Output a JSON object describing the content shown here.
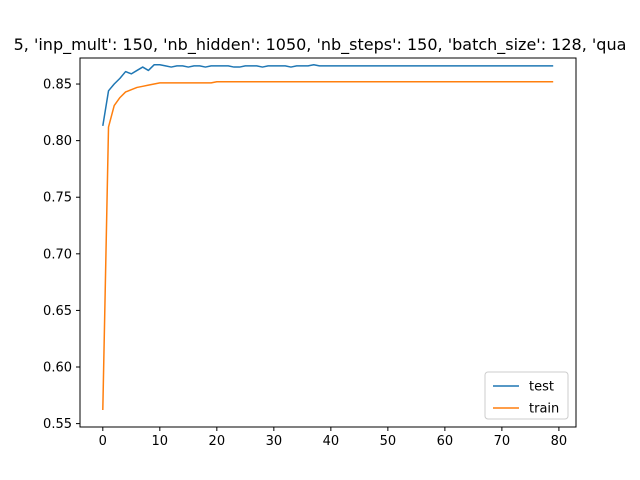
{
  "chart_data": {
    "type": "line",
    "title": "5, 'inp_mult': 150, 'nb_hidden': 1050, 'nb_steps': 150, 'batch_size': 128, 'qua",
    "xlabel": "",
    "ylabel": "",
    "xlim": [
      -4,
      83
    ],
    "ylim": [
      0.547,
      0.873
    ],
    "xticks": [
      0,
      10,
      20,
      30,
      40,
      50,
      60,
      70,
      80
    ],
    "yticks": [
      0.55,
      0.6,
      0.65,
      0.7,
      0.75,
      0.8,
      0.85
    ],
    "ytick_labels": [
      "0.55",
      "0.60",
      "0.65",
      "0.70",
      "0.75",
      "0.80",
      "0.85"
    ],
    "grid": false,
    "legend_position": "lower-right",
    "x": [
      0,
      1,
      2,
      3,
      4,
      5,
      6,
      7,
      8,
      9,
      10,
      11,
      12,
      13,
      14,
      15,
      16,
      17,
      18,
      19,
      20,
      21,
      22,
      23,
      24,
      25,
      26,
      27,
      28,
      29,
      30,
      31,
      32,
      33,
      34,
      35,
      36,
      37,
      38,
      39,
      40,
      41,
      42,
      43,
      44,
      45,
      46,
      47,
      48,
      49,
      50,
      51,
      52,
      53,
      54,
      55,
      56,
      57,
      58,
      59,
      60,
      61,
      62,
      63,
      64,
      65,
      66,
      67,
      68,
      69,
      70,
      71,
      72,
      73,
      74,
      75,
      76,
      77,
      78,
      79
    ],
    "series": [
      {
        "name": "test",
        "color": "#1f77b4",
        "values": [
          0.813,
          0.844,
          0.85,
          0.855,
          0.861,
          0.859,
          0.862,
          0.865,
          0.862,
          0.867,
          0.867,
          0.866,
          0.865,
          0.866,
          0.866,
          0.865,
          0.866,
          0.866,
          0.865,
          0.866,
          0.866,
          0.866,
          0.866,
          0.865,
          0.865,
          0.866,
          0.866,
          0.866,
          0.865,
          0.866,
          0.866,
          0.866,
          0.866,
          0.865,
          0.866,
          0.866,
          0.866,
          0.867,
          0.866,
          0.866,
          0.866,
          0.866,
          0.866,
          0.866,
          0.866,
          0.866,
          0.866,
          0.866,
          0.866,
          0.866,
          0.866,
          0.866,
          0.866,
          0.866,
          0.866,
          0.866,
          0.866,
          0.866,
          0.866,
          0.866,
          0.866,
          0.866,
          0.866,
          0.866,
          0.866,
          0.866,
          0.866,
          0.866,
          0.866,
          0.866,
          0.866,
          0.866,
          0.866,
          0.866,
          0.866,
          0.866,
          0.866,
          0.866,
          0.866,
          0.866
        ]
      },
      {
        "name": "train",
        "color": "#ff7f0e",
        "values": [
          0.562,
          0.812,
          0.831,
          0.838,
          0.843,
          0.845,
          0.847,
          0.848,
          0.849,
          0.85,
          0.851,
          0.851,
          0.851,
          0.851,
          0.851,
          0.851,
          0.851,
          0.851,
          0.851,
          0.851,
          0.852,
          0.852,
          0.852,
          0.852,
          0.852,
          0.852,
          0.852,
          0.852,
          0.852,
          0.852,
          0.852,
          0.852,
          0.852,
          0.852,
          0.852,
          0.852,
          0.852,
          0.852,
          0.852,
          0.852,
          0.852,
          0.852,
          0.852,
          0.852,
          0.852,
          0.852,
          0.852,
          0.852,
          0.852,
          0.852,
          0.852,
          0.852,
          0.852,
          0.852,
          0.852,
          0.852,
          0.852,
          0.852,
          0.852,
          0.852,
          0.852,
          0.852,
          0.852,
          0.852,
          0.852,
          0.852,
          0.852,
          0.852,
          0.852,
          0.852,
          0.852,
          0.852,
          0.852,
          0.852,
          0.852,
          0.852,
          0.852,
          0.852,
          0.852,
          0.852
        ]
      }
    ]
  }
}
